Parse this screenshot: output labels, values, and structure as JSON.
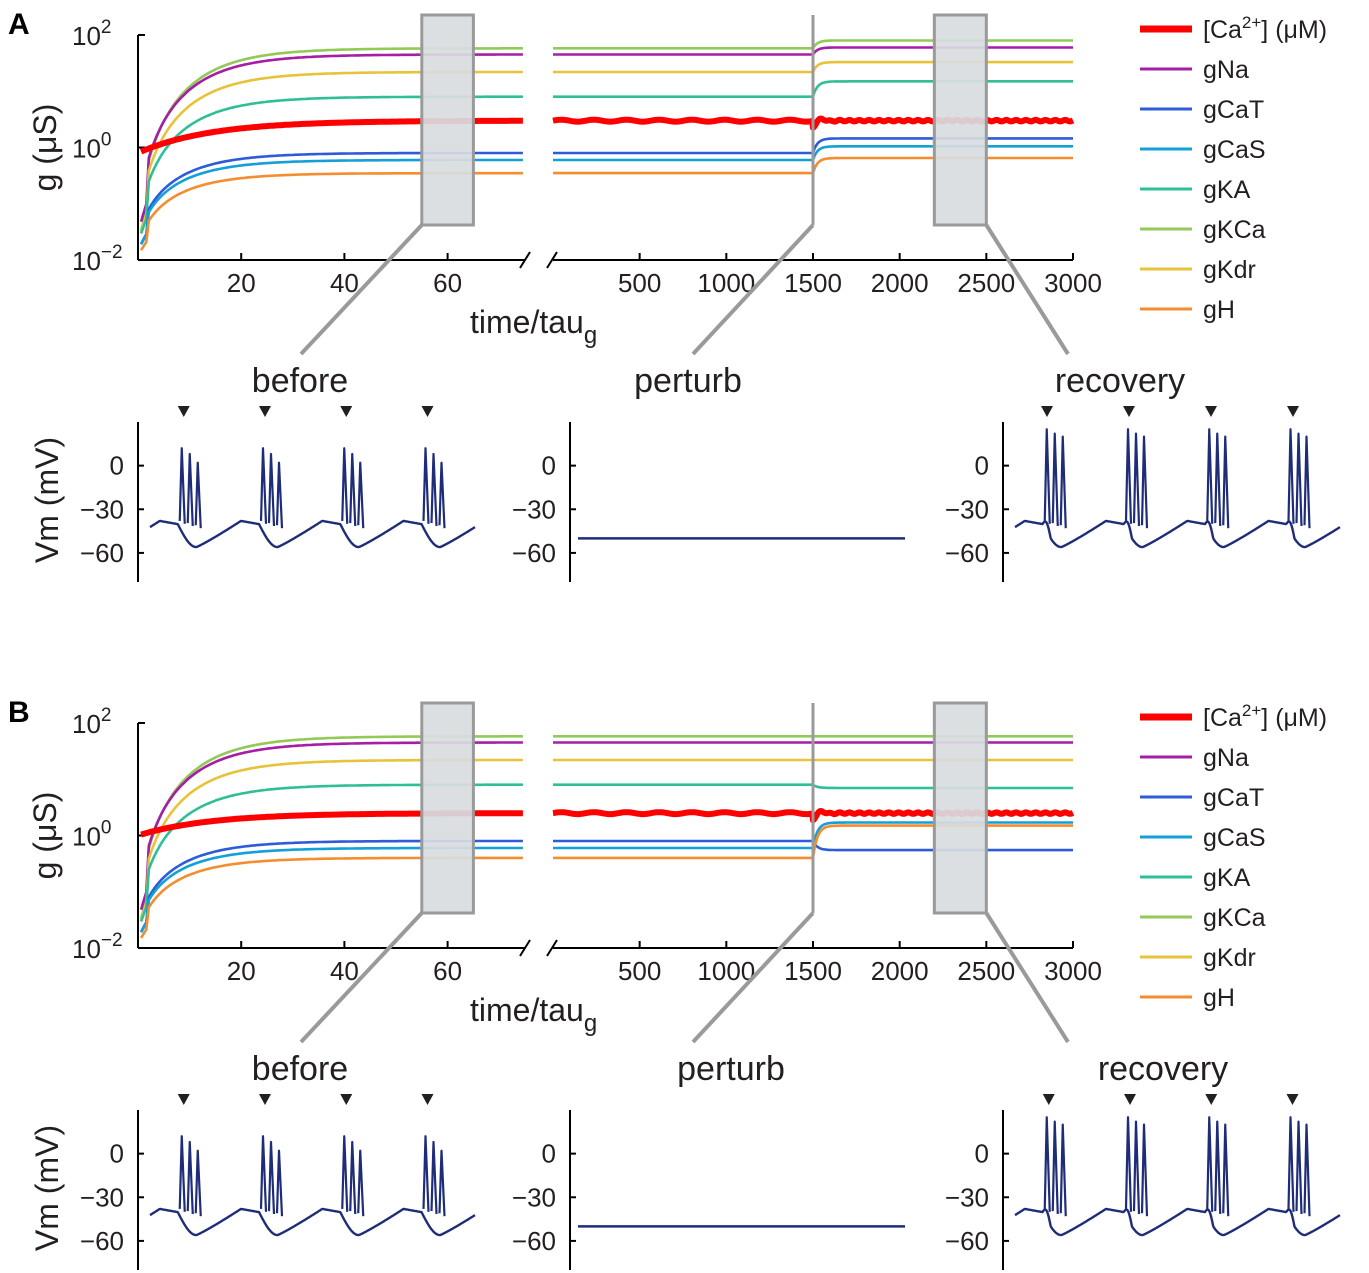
{
  "colors": {
    "Ca": "#ff0000",
    "gNa": "#a51ea5",
    "gCaT": "#2e5bd8",
    "gCaS": "#139fd8",
    "gKA": "#2fbf97",
    "gKCa": "#92c957",
    "gKdr": "#e7c23a",
    "gH": "#f58c2e",
    "voltage": "#1f2d79",
    "box_fill": "#d9dcdf",
    "box_stroke": "#9a9a9a",
    "connector": "#9a9a9a"
  },
  "chart_data": [
    {
      "panel": "A",
      "type": "line",
      "ylabel": "g (μS)",
      "xlabel": "time/tau",
      "xlabel_subscript": "g",
      "yscale": "log",
      "ylim": [
        0.01,
        100
      ],
      "y_ticks": [
        {
          "base": "10",
          "exp": "2"
        },
        {
          "base": "10",
          "exp": "0"
        },
        {
          "base": "10",
          "exp": "−2"
        }
      ],
      "x_left_range": [
        0,
        75
      ],
      "x_right_range": [
        0,
        3000
      ],
      "x_ticks_left": [
        "20",
        "40",
        "60"
      ],
      "x_ticks_right": [
        "500",
        "1000",
        "1500",
        "2000",
        "2500",
        "3000"
      ],
      "perturbation_at": 1500,
      "highlight_left": [
        55,
        65
      ],
      "highlight_right": [
        2200,
        2500
      ],
      "legend": {
        "placement": "right",
        "entries": [
          {
            "key": "Ca",
            "label": "[Ca",
            "sup": "2+",
            "suffix": "] (μM)"
          },
          {
            "key": "gNa",
            "label": "gNa"
          },
          {
            "key": "gCaT",
            "label": "gCaT"
          },
          {
            "key": "gCaS",
            "label": "gCaS"
          },
          {
            "key": "gKA",
            "label": "gKA"
          },
          {
            "key": "gKCa",
            "label": "gKCa"
          },
          {
            "key": "gKdr",
            "label": "gKdr"
          },
          {
            "key": "gH",
            "label": "gH"
          }
        ]
      },
      "series": [
        {
          "key": "gKCa",
          "start": 0.02,
          "steady": 58,
          "after": 80
        },
        {
          "key": "gNa",
          "start": 0.03,
          "steady": 45,
          "after": 60
        },
        {
          "key": "gKdr",
          "start": 0.02,
          "steady": 22,
          "after": 33
        },
        {
          "key": "gKA",
          "start": 0.02,
          "steady": 8,
          "after": 15
        },
        {
          "key": "Ca",
          "start": 0.8,
          "steady": 3.0,
          "after": 3.0
        },
        {
          "key": "gCaT",
          "start": 0.015,
          "steady": 0.8,
          "after": 1.45
        },
        {
          "key": "gCaS",
          "start": 0.015,
          "steady": 0.6,
          "after": 1.05
        },
        {
          "key": "gH",
          "start": 0.012,
          "steady": 0.35,
          "after": 0.65
        }
      ],
      "voltage": {
        "ylabel": "Vm (mV)",
        "y_ticks": [
          "0",
          "−30",
          "−60"
        ],
        "ylim": [
          -80,
          30
        ],
        "baseline_mV": -50,
        "subplots": [
          {
            "title": "before",
            "bursts": 4,
            "spikes_per_burst": 3,
            "markers": 4
          },
          {
            "title": "perturb",
            "flat_mV": -50
          },
          {
            "title": "recovery",
            "bursts": 4,
            "spikes_per_burst": 3,
            "markers": 4
          }
        ]
      }
    },
    {
      "panel": "B",
      "type": "line",
      "ylabel": "g (μS)",
      "xlabel": "time/tau",
      "xlabel_subscript": "g",
      "yscale": "log",
      "ylim": [
        0.01,
        100
      ],
      "y_ticks": [
        {
          "base": "10",
          "exp": "2"
        },
        {
          "base": "10",
          "exp": "0"
        },
        {
          "base": "10",
          "exp": "−2"
        }
      ],
      "x_left_range": [
        0,
        75
      ],
      "x_right_range": [
        0,
        3000
      ],
      "x_ticks_left": [
        "20",
        "40",
        "60"
      ],
      "x_ticks_right": [
        "500",
        "1000",
        "1500",
        "2000",
        "2500",
        "3000"
      ],
      "perturbation_at": 1500,
      "highlight_left": [
        55,
        65
      ],
      "highlight_right": [
        2200,
        2500
      ],
      "legend": {
        "placement": "right",
        "entries": [
          {
            "key": "Ca",
            "label": "[Ca",
            "sup": "2+",
            "suffix": "] (μM)"
          },
          {
            "key": "gNa",
            "label": "gNa"
          },
          {
            "key": "gCaT",
            "label": "gCaT"
          },
          {
            "key": "gCaS",
            "label": "gCaS"
          },
          {
            "key": "gKA",
            "label": "gKA"
          },
          {
            "key": "gKCa",
            "label": "gKCa"
          },
          {
            "key": "gKdr",
            "label": "gKdr"
          },
          {
            "key": "gH",
            "label": "gH"
          }
        ]
      },
      "series": [
        {
          "key": "gKCa",
          "start": 0.02,
          "steady": 58,
          "after": 58
        },
        {
          "key": "gNa",
          "start": 0.03,
          "steady": 45,
          "after": 45
        },
        {
          "key": "gKdr",
          "start": 0.02,
          "steady": 22,
          "after": 22
        },
        {
          "key": "gKA",
          "start": 0.02,
          "steady": 8,
          "after": 7
        },
        {
          "key": "Ca",
          "start": 1.0,
          "steady": 2.5,
          "after": 2.5
        },
        {
          "key": "gCaT",
          "start": 0.015,
          "steady": 0.8,
          "after": 0.55
        },
        {
          "key": "gCaS",
          "start": 0.015,
          "steady": 0.6,
          "after": 1.7
        },
        {
          "key": "gH",
          "start": 0.012,
          "steady": 0.4,
          "after": 1.5
        }
      ],
      "voltage": {
        "ylabel": "Vm (mV)",
        "y_ticks": [
          "0",
          "−30",
          "−60"
        ],
        "ylim": [
          -80,
          30
        ],
        "baseline_mV": -50,
        "subplots": [
          {
            "title": "before",
            "bursts": 4,
            "spikes_per_burst": 3,
            "markers": 4
          },
          {
            "title": "perturb",
            "flat_mV": -50
          },
          {
            "title": "recovery",
            "bursts": 4,
            "spikes_per_burst": 3,
            "markers": 4
          }
        ]
      }
    }
  ]
}
